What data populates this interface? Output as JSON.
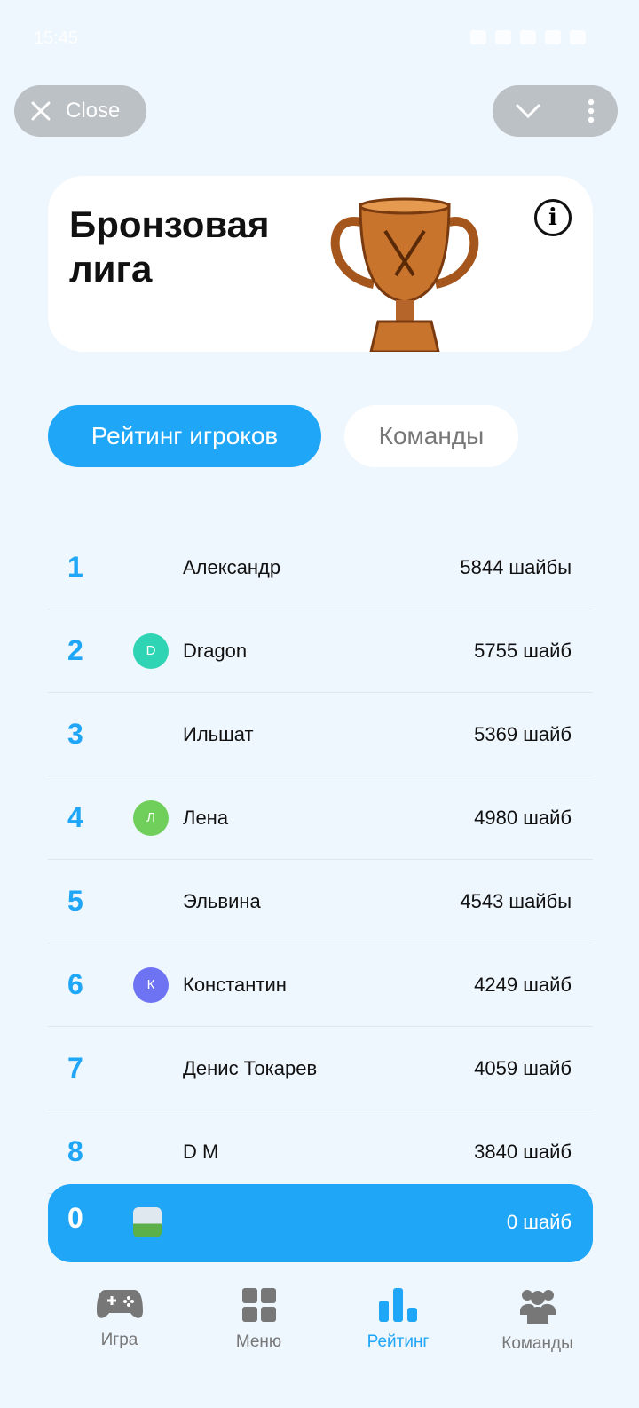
{
  "status_bar": {
    "time": "15:45"
  },
  "top": {
    "close_label": "Close"
  },
  "league": {
    "title": "Бронзовая лига"
  },
  "tabs": [
    {
      "label": "Рейтинг игроков",
      "active": true
    },
    {
      "label": "Команды",
      "active": false
    }
  ],
  "players": [
    {
      "rank": "1",
      "avatar": "",
      "name": "Александр",
      "score": "5844 шайбы"
    },
    {
      "rank": "2",
      "avatar": "D",
      "avatar_color": "#2fd4b4",
      "name": "Dragon",
      "score": "5755 шайб"
    },
    {
      "rank": "3",
      "avatar": "",
      "name": "Ильшат",
      "score": "5369 шайб"
    },
    {
      "rank": "4",
      "avatar": "Л",
      "avatar_color": "#6fcf5a",
      "name": "Лена",
      "score": "4980 шайб"
    },
    {
      "rank": "5",
      "avatar": "",
      "name": "Эльвина",
      "score": "4543 шайбы"
    },
    {
      "rank": "6",
      "avatar": "К",
      "avatar_color": "#6d73f3",
      "name": "Константин",
      "score": "4249 шайб"
    },
    {
      "rank": "7",
      "avatar": "",
      "name": "Денис Токарев",
      "score": "4059 шайб"
    },
    {
      "rank": "8",
      "avatar": "",
      "name": "D M",
      "score": "3840 шайб"
    }
  ],
  "me": {
    "rank": "0",
    "score": "0 шайб"
  },
  "nav": [
    {
      "label": "Игра",
      "icon": "gamepad-icon"
    },
    {
      "label": "Меню",
      "icon": "grid-icon"
    },
    {
      "label": "Рейтинг",
      "icon": "bar-chart-icon",
      "active": true
    },
    {
      "label": "Команды",
      "icon": "users-icon"
    }
  ],
  "colors": {
    "accent": "#1fa6f7",
    "background": "#eef6fe"
  }
}
